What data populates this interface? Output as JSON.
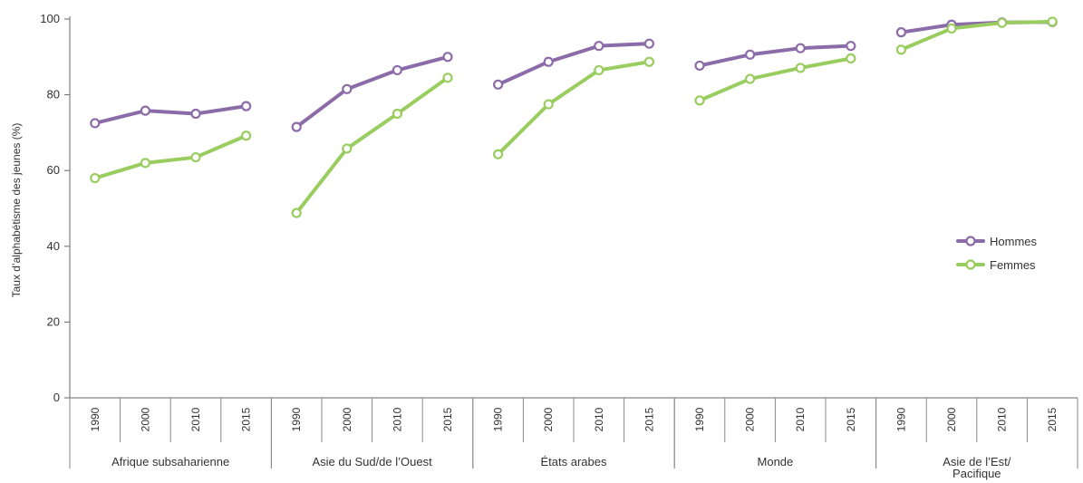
{
  "chart_data": {
    "type": "line",
    "ylabel": "Taux d’alphabétisme des jeunes (%)",
    "ylim": [
      0,
      100
    ],
    "yticks": [
      0,
      20,
      40,
      60,
      80,
      100
    ],
    "grid": false,
    "legend_position": "right",
    "years": [
      "1990",
      "2000",
      "2010",
      "2015"
    ],
    "groups": [
      {
        "region": "Afrique subsaharienne",
        "hommes": [
          72.5,
          75.8,
          75,
          77
        ],
        "femmes": [
          58,
          62,
          63.5,
          69.2
        ]
      },
      {
        "region": "Asie du Sud/de l’Ouest",
        "hommes": [
          71.5,
          81.5,
          86.5,
          90
        ],
        "femmes": [
          48.8,
          65.8,
          75,
          84.5
        ]
      },
      {
        "region": "États arabes",
        "hommes": [
          82.7,
          88.7,
          92.9,
          93.5
        ],
        "femmes": [
          64.3,
          77.5,
          86.5,
          88.7
        ]
      },
      {
        "region": "Monde",
        "hommes": [
          87.7,
          90.6,
          92.3,
          92.9
        ],
        "femmes": [
          78.5,
          84.2,
          87.1,
          89.6
        ]
      },
      {
        "region": "Asie de l’Est/ Pacifique",
        "region_lines": [
          "Asie de l’Est/",
          "Pacifique"
        ],
        "hommes": [
          96.5,
          98.5,
          99.1,
          99.2
        ],
        "femmes": [
          91.9,
          97.5,
          99,
          99.3
        ]
      }
    ],
    "series": [
      {
        "name": "Hommes",
        "key": "hommes",
        "color": "#8b6ca9"
      },
      {
        "name": "Femmes",
        "key": "femmes",
        "color": "#9acd5f"
      }
    ]
  }
}
